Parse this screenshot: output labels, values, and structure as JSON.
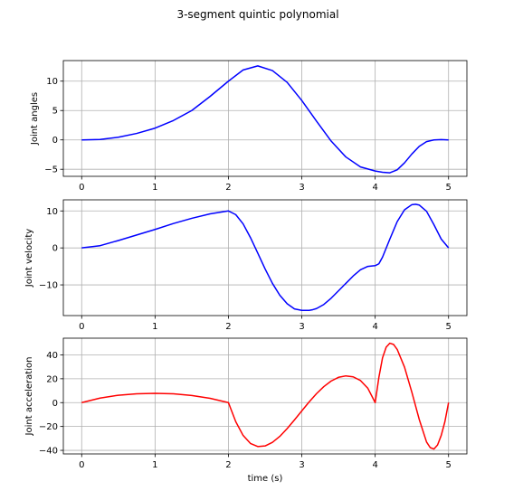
{
  "figure": {
    "title": "3-segment quintic polynomial"
  },
  "chart_data": [
    {
      "type": "line",
      "title": "",
      "xlabel": "",
      "ylabel": "Joint angles",
      "xlim": [
        -0.25,
        5.25
      ],
      "ylim": [
        -6.2,
        13.5
      ],
      "xticks": [
        0,
        1,
        2,
        3,
        4,
        5
      ],
      "yticks": [
        -5,
        0,
        5,
        10
      ],
      "grid": true,
      "series": [
        {
          "color": "#0000ff",
          "x": [
            0,
            0.25,
            0.5,
            0.75,
            1,
            1.25,
            1.5,
            1.75,
            2,
            2.2,
            2.4,
            2.6,
            2.8,
            3,
            3.2,
            3.4,
            3.6,
            3.8,
            4,
            4.1,
            4.2,
            4.3,
            4.4,
            4.5,
            4.6,
            4.7,
            4.8,
            4.9,
            5
          ],
          "y": [
            0,
            0.07,
            0.45,
            1.1,
            2.0,
            3.3,
            5.0,
            7.4,
            10.0,
            11.9,
            12.6,
            11.8,
            9.8,
            6.7,
            3.2,
            -0.2,
            -2.9,
            -4.6,
            -5.3,
            -5.5,
            -5.6,
            -5.1,
            -3.9,
            -2.4,
            -1.1,
            -0.3,
            0,
            0.05,
            0
          ]
        }
      ]
    },
    {
      "type": "line",
      "title": "",
      "xlabel": "",
      "ylabel": "Joint velocity",
      "xlim": [
        -0.25,
        5.25
      ],
      "ylim": [
        -18.3,
        13.0
      ],
      "xticks": [
        0,
        1,
        2,
        3,
        4,
        5
      ],
      "yticks": [
        -10,
        0,
        10
      ],
      "grid": true,
      "series": [
        {
          "color": "#0000ff",
          "x": [
            0,
            0.25,
            0.5,
            0.75,
            1,
            1.25,
            1.5,
            1.75,
            2,
            2.1,
            2.2,
            2.3,
            2.4,
            2.5,
            2.6,
            2.7,
            2.8,
            2.9,
            3,
            3.1,
            3.15,
            3.2,
            3.3,
            3.4,
            3.5,
            3.6,
            3.7,
            3.8,
            3.9,
            4,
            4.05,
            4.1,
            4.2,
            4.3,
            4.4,
            4.5,
            4.55,
            4.6,
            4.7,
            4.8,
            4.9,
            5
          ],
          "y": [
            0,
            0.6,
            2.0,
            3.5,
            5.0,
            6.6,
            8.0,
            9.2,
            10.0,
            9.0,
            6.5,
            2.8,
            -1.4,
            -5.7,
            -9.6,
            -12.8,
            -15.1,
            -16.5,
            -16.9,
            -16.9,
            -16.7,
            -16.4,
            -15.3,
            -13.6,
            -11.6,
            -9.6,
            -7.6,
            -5.9,
            -5.0,
            -4.8,
            -4.3,
            -2.5,
            2.4,
            7.1,
            10.3,
            11.7,
            11.8,
            11.6,
            9.9,
            6.3,
            2.4,
            0
          ]
        }
      ]
    },
    {
      "type": "line",
      "title": "",
      "xlabel": "time (s)",
      "ylabel": "Joint acceleration",
      "xlim": [
        -0.25,
        5.25
      ],
      "ylim": [
        -43,
        54
      ],
      "xticks": [
        0,
        1,
        2,
        3,
        4,
        5
      ],
      "yticks": [
        -40,
        -20,
        0,
        20,
        40
      ],
      "grid": true,
      "series": [
        {
          "color": "#ff0000",
          "x": [
            0,
            0.25,
            0.5,
            0.75,
            1,
            1.25,
            1.5,
            1.75,
            2,
            2.1,
            2.2,
            2.3,
            2.4,
            2.5,
            2.6,
            2.7,
            2.8,
            2.9,
            3,
            3.1,
            3.2,
            3.3,
            3.4,
            3.5,
            3.6,
            3.7,
            3.8,
            3.9,
            4,
            4.05,
            4.1,
            4.15,
            4.2,
            4.25,
            4.3,
            4.4,
            4.5,
            4.6,
            4.7,
            4.75,
            4.8,
            4.85,
            4.9,
            4.95,
            5
          ],
          "y": [
            0,
            3.8,
            6.2,
            7.4,
            7.8,
            7.4,
            6.0,
            3.6,
            0,
            -16,
            -27.5,
            -34.2,
            -36.8,
            -36.3,
            -33.3,
            -28.3,
            -21.8,
            -14.5,
            -6.9,
            0.6,
            7.5,
            13.4,
            18.1,
            21.2,
            22.4,
            21.6,
            18.5,
            12.0,
            0,
            21,
            37.5,
            46.5,
            49.8,
            48.8,
            44.6,
            29.7,
            8.7,
            -14.0,
            -33.0,
            -37.7,
            -38.9,
            -35.5,
            -27.5,
            -16.0,
            0
          ]
        }
      ]
    }
  ]
}
